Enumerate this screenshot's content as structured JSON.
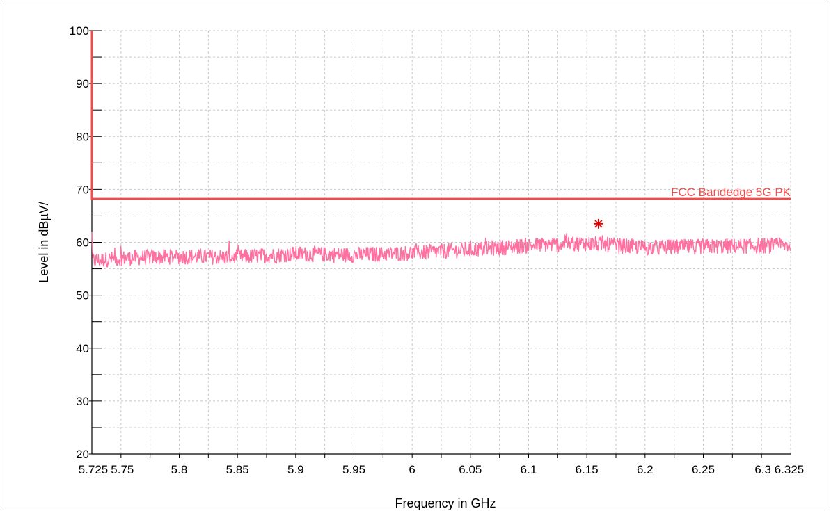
{
  "chart_data": {
    "type": "line",
    "title": "",
    "xlabel": "Frequency in GHz",
    "ylabel": "Level in dBµV/",
    "xlim": [
      5.725,
      6.325
    ],
    "ylim": [
      20,
      100
    ],
    "x_ticks": [
      5.725,
      5.75,
      5.8,
      5.85,
      5.9,
      5.95,
      6.0,
      6.05,
      6.1,
      6.15,
      6.2,
      6.25,
      6.3,
      6.325
    ],
    "x_tick_labels": [
      "5.725",
      "5.75",
      "5.8",
      "5.85",
      "5.9",
      "5.95",
      "6",
      "6.05",
      "6.1",
      "6.15",
      "6.2",
      "6.25",
      "6.3",
      "6.325"
    ],
    "y_ticks": [
      20,
      30,
      40,
      50,
      60,
      70,
      80,
      90,
      100
    ],
    "y_tick_labels": [
      "20",
      "30",
      "40",
      "50",
      "60",
      "70",
      "80",
      "90",
      "100"
    ],
    "grid": true,
    "series": [
      {
        "name": "",
        "color": "#ff6f9f",
        "x": [
          5.725,
          5.75,
          5.8,
          5.85,
          5.9,
          5.95,
          6.0,
          6.05,
          6.1,
          6.15,
          6.2,
          6.25,
          6.3,
          6.325
        ],
        "values": [
          56.5,
          57.0,
          57.3,
          57.2,
          57.8,
          57.6,
          58.0,
          58.6,
          59.4,
          59.8,
          59.0,
          59.2,
          59.3,
          59.4
        ],
        "noise_amplitude": 1.5
      }
    ],
    "limit_line": {
      "name": "FCC Bandedge 5G PK",
      "color": "#f04c4c",
      "points": [
        [
          5.725,
          100
        ],
        [
          5.725,
          68.2
        ],
        [
          6.325,
          68.2
        ]
      ]
    },
    "marker": {
      "x": 6.16,
      "y": 63.5,
      "symbol": "asterisk",
      "color": "#e00000"
    }
  }
}
